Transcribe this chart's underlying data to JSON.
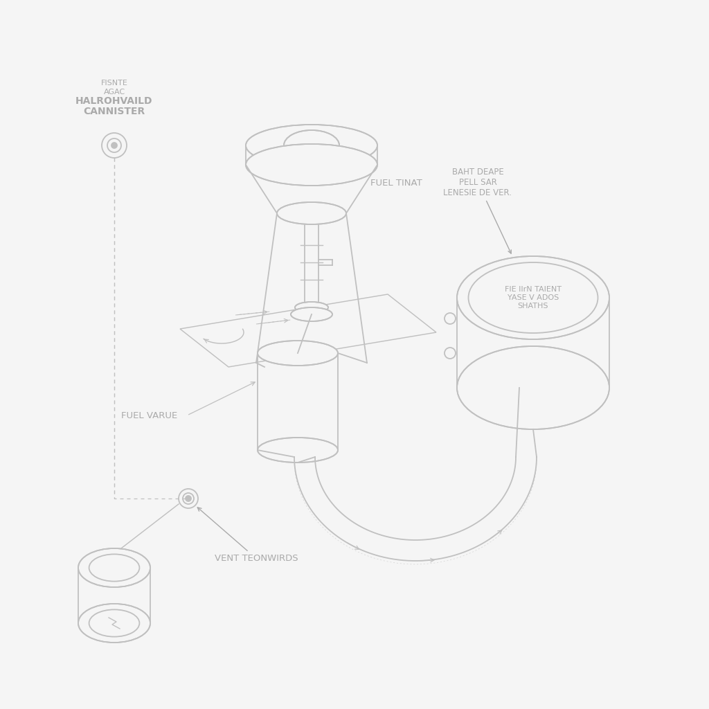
{
  "bg_color": "#f5f5f5",
  "line_color": "#c0c0c0",
  "text_color": "#aaaaaa",
  "labels": {
    "canister_small1": "FISNTE",
    "canister_small2": "AGAC",
    "canister_bold1": "HALROHVAILD",
    "canister_bold2": "CANNISTER",
    "fuel_tank": "FUEL TINAT",
    "pressure_label1": "BAHT DEAPE",
    "pressure_label2": "PELL SAR",
    "pressure_label3": "LENESIE DE VER.",
    "pressure_detail1": "FIE IIrN TAIENT",
    "pressure_detail2": "YASE V ADOS",
    "pressure_detail3": "SHATHS",
    "fuel_valve": "FUEL VARUE",
    "vent": "VENT TEONWIRDS"
  }
}
